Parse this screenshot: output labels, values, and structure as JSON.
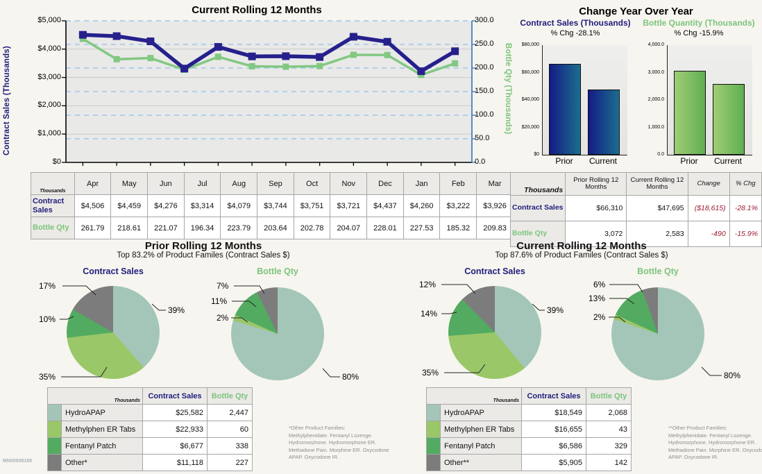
{
  "watermark": "MN00008189",
  "colors": {
    "navy_text": "#1f1d7a",
    "green_text": "#7cc47c",
    "negative": "#9e1b32",
    "line_navy": "#26208c",
    "line_green": "#82c882",
    "solid_grid": "#c9c9c9",
    "dashed_grid": "#9cc7e8",
    "right_axis": "#2e75b6",
    "bar_blue": [
      "#141c85",
      "#1b6e8e"
    ],
    "bar_green": [
      "#a0cd75",
      "#60ae52"
    ],
    "pie": [
      "#a3c6b8",
      "#9ac768",
      "#52ab61",
      "#7c7c7c"
    ]
  },
  "chart_data": [
    {
      "id": "rolling-12-line",
      "type": "line",
      "title": "Current Rolling 12 Months",
      "x": [
        "Apr",
        "May",
        "Jun",
        "Jul",
        "Aug",
        "Sep",
        "Oct",
        "Nov",
        "Dec",
        "Jan",
        "Feb",
        "Mar"
      ],
      "series": [
        {
          "name": "Contract Sales",
          "axis": "left",
          "ymax": 5000,
          "color": "#26208c",
          "values": [
            4506,
            4459,
            4276,
            3314,
            4079,
            3744,
            3751,
            3721,
            4437,
            4260,
            3222,
            3926
          ]
        },
        {
          "name": "Bottle Qty",
          "axis": "right",
          "ymax": 300,
          "color": "#82c882",
          "values": [
            261.79,
            218.61,
            221.07,
            196.34,
            223.79,
            203.64,
            202.78,
            204.07,
            228.01,
            227.53,
            185.32,
            209.83
          ]
        }
      ],
      "left_axis_title": "Contract Sales (Thousands)",
      "right_axis_title": "Bottle Qty (Thousands)",
      "left_ticks": [
        "$5,000",
        "$4,000",
        "$3,000",
        "$2,000",
        "$1,000",
        "$0"
      ],
      "right_ticks": [
        "300.0",
        "250.0",
        "200.0",
        "150.0",
        "100.0",
        "50.0",
        "0.0"
      ],
      "left_ylim": [
        0,
        5000
      ],
      "right_ylim": [
        0,
        300
      ],
      "grid": "solid gray at left-axis 1000s, dashed light blue at right-axis 50s"
    },
    {
      "id": "yoy-contract-sales-bars",
      "type": "bar",
      "title": "Contract Sales (Thousands)",
      "subtitle": "% Chg -28.1%",
      "categories": [
        "Prior",
        "Current"
      ],
      "values": [
        66310,
        47695
      ],
      "ylim": [
        0,
        80000
      ],
      "yticks": [
        "$0",
        "$20,000",
        "$40,000",
        "$60,000",
        "$80,000"
      ]
    },
    {
      "id": "yoy-bottle-qty-bars",
      "type": "bar",
      "title": "Bottle Quantity (Thousands)",
      "subtitle": "% Chg -15.9%",
      "categories": [
        "Prior",
        "Current"
      ],
      "values": [
        3072,
        2583
      ],
      "ylim": [
        0,
        4000
      ],
      "yticks": [
        "0.0",
        "1,000.0",
        "2,000.0",
        "3,000.0",
        "4,000.0"
      ]
    },
    {
      "id": "prior-contract-sales-pie",
      "type": "pie",
      "title": "Contract Sales",
      "labels": [
        "HydroAPAP",
        "Methylphen ER Tabs",
        "Fentanyl Patch",
        "Other*"
      ],
      "values": [
        25582,
        22933,
        6677,
        11118
      ],
      "pct_labels": [
        "39%",
        "35%",
        "10%",
        "17%"
      ]
    },
    {
      "id": "prior-bottle-qty-pie",
      "type": "pie",
      "title": "Bottle Qty",
      "labels": [
        "HydroAPAP",
        "Methylphen ER Tabs",
        "Fentanyl Patch",
        "Other*"
      ],
      "values": [
        2447,
        60,
        338,
        227
      ],
      "pct_labels": [
        "80%",
        "2%",
        "11%",
        "7%"
      ]
    },
    {
      "id": "current-contract-sales-pie",
      "type": "pie",
      "title": "Contract Sales",
      "labels": [
        "HydroAPAP",
        "Methylphen ER Tabs",
        "Fentanyl Patch",
        "Other**"
      ],
      "values": [
        18549,
        16655,
        6586,
        5905
      ],
      "pct_labels": [
        "39%",
        "35%",
        "14%",
        "12%"
      ]
    },
    {
      "id": "current-bottle-qty-pie",
      "type": "pie",
      "title": "Bottle Qty",
      "labels": [
        "HydroAPAP",
        "Methylphen ER Tabs",
        "Fentanyl Patch",
        "Other**"
      ],
      "values": [
        2068,
        43,
        329,
        142
      ],
      "pct_labels": [
        "80%",
        "2%",
        "13%",
        "6%"
      ]
    }
  ],
  "line_section": {
    "title": "Current Rolling 12 Months"
  },
  "yoy_section": {
    "title": "Change Year Over Year"
  },
  "month_table": {
    "corner": "Thousands",
    "columns": [
      "Apr",
      "May",
      "Jun",
      "Jul",
      "Aug",
      "Sep",
      "Oct",
      "Nov",
      "Dec",
      "Jan",
      "Feb",
      "Mar"
    ],
    "rows": [
      {
        "label": "Contract Sales",
        "color": "navy",
        "values": [
          "$4,506",
          "$4,459",
          "$4,276",
          "$3,314",
          "$4,079",
          "$3,744",
          "$3,751",
          "$3,721",
          "$4,437",
          "$4,260",
          "$3,222",
          "$3,926"
        ]
      },
      {
        "label": "Bottle Qty",
        "color": "green",
        "values": [
          "261.79",
          "218.61",
          "221.07",
          "196.34",
          "223.79",
          "203.64",
          "202.78",
          "204.07",
          "228.01",
          "227.53",
          "185.32",
          "209.83"
        ]
      }
    ]
  },
  "summary_table": {
    "corner": "Thousands",
    "columns": [
      "Prior Rolling 12 Months",
      "Current Rolling 12 Months",
      "Change",
      "% Chg"
    ],
    "rows": [
      {
        "label": "Contract Sales",
        "color": "navy",
        "values": [
          "$66,310",
          "$47,695",
          "($18,615)",
          "-28.1%"
        ],
        "negative_from": 2
      },
      {
        "label": "Bottle Qty",
        "color": "green",
        "values": [
          "3,072",
          "2,583",
          "-490",
          "-15.9%"
        ],
        "negative_from": 2
      }
    ]
  },
  "prior_section": {
    "title": "Prior Rolling 12 Months",
    "subtitle": "Top 83.2% of Product Familes (Contract Sales $)",
    "pie1_title": "Contract Sales",
    "pie2_title": "Bottle Qty",
    "table": {
      "corner": "Thousands",
      "columns": [
        "Contract Sales",
        "Bottle Qty"
      ],
      "rows": [
        {
          "name": "HydroAPAP",
          "cs": "$25,582",
          "bq": "2,447"
        },
        {
          "name": "Methylphen ER Tabs",
          "cs": "$22,933",
          "bq": "60"
        },
        {
          "name": "Fentanyl Patch",
          "cs": "$6,677",
          "bq": "338"
        },
        {
          "name": "Other*",
          "cs": "$11,118",
          "bq": "227"
        }
      ]
    },
    "footnote": "*Other Product Families:\nMethylphenidate. Fentanyl Lozenge.\nHydromorphone. Hydromorphone ER.\nMethadone Pain. Morphine ER. Oxycodone\nAPAP. Oxycodone IR."
  },
  "current_section": {
    "title": "Current Rolling 12 Months",
    "subtitle": "Top 87.6% of Product Familes (Contract Sales $)",
    "pie1_title": "Contract Sales",
    "pie2_title": "Bottle Qty",
    "table": {
      "corner": "Thousands",
      "columns": [
        "Contract Sales",
        "Bottle Qty"
      ],
      "rows": [
        {
          "name": "HydroAPAP",
          "cs": "$18,549",
          "bq": "2,068"
        },
        {
          "name": "Methylphen ER Tabs",
          "cs": "$16,655",
          "bq": "43"
        },
        {
          "name": "Fentanyl Patch",
          "cs": "$6,586",
          "bq": "329"
        },
        {
          "name": "Other**",
          "cs": "$5,905",
          "bq": "142"
        }
      ]
    },
    "footnote": "**Other Product Families:\nMethylphenidate. Fentanyl Lozenge.\nHydromorphone. Hydromorphone ER.\nMethadone Pain. Morphine ER. Oxycodone\nAPAP. Oxycodone IR."
  }
}
